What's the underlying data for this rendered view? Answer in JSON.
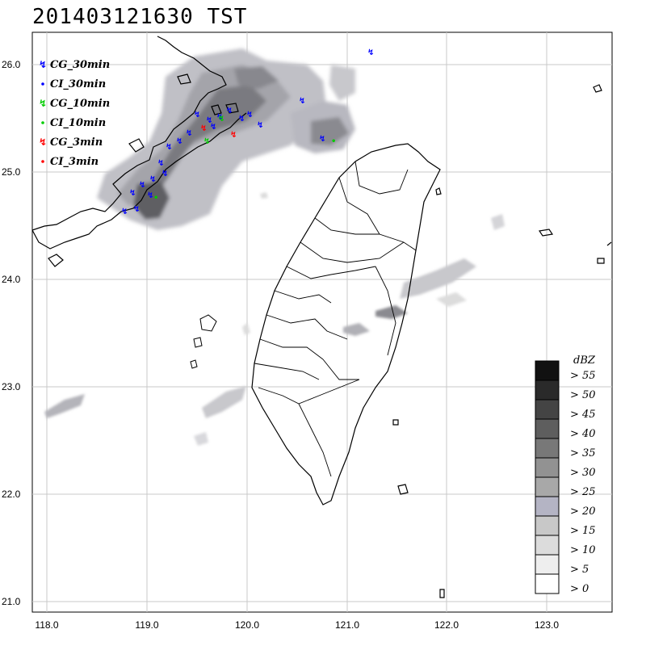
{
  "title": "201403121630 TST",
  "x_ticks": [
    "118.0",
    "119.0",
    "120.0",
    "121.0",
    "122.0",
    "123.0"
  ],
  "y_ticks": [
    "26.0",
    "25.0",
    "24.0",
    "23.0",
    "22.0",
    "21.0"
  ],
  "lightning_legend": [
    {
      "symbol": "lightning-bolt",
      "color": "#0000ff",
      "label": "CG_30min"
    },
    {
      "symbol": "dot",
      "color": "#0000ff",
      "label": "CI_30min"
    },
    {
      "symbol": "lightning-bolt",
      "color": "#00ff00",
      "label": "CG_10min"
    },
    {
      "symbol": "dot",
      "color": "#00ff00",
      "label": "CI_10min"
    },
    {
      "symbol": "lightning-bolt",
      "color": "#ff0000",
      "label": "CG_3min"
    },
    {
      "symbol": "dot",
      "color": "#ff0000",
      "label": "CI_3min"
    }
  ],
  "dbz_scale": {
    "unit": "dBZ",
    "levels": [
      {
        "label": ">  55",
        "color": "#111111"
      },
      {
        "label": ">  50",
        "color": "#2a2a2a"
      },
      {
        "label": ">  45",
        "color": "#444444"
      },
      {
        "label": ">  40",
        "color": "#5e5e5e"
      },
      {
        "label": ">  35",
        "color": "#787878"
      },
      {
        "label": ">  30",
        "color": "#929292"
      },
      {
        "label": ">  25",
        "color": "#a8a8a8"
      },
      {
        "label": ">  20",
        "color": "#b4b4c4"
      },
      {
        "label": ">  15",
        "color": "#c8c8c8"
      },
      {
        "label": ">  10",
        "color": "#dcdcdc"
      },
      {
        "label": ">   5",
        "color": "#eeeeee"
      },
      {
        "label": ">   0",
        "color": "#ffffff"
      }
    ]
  }
}
